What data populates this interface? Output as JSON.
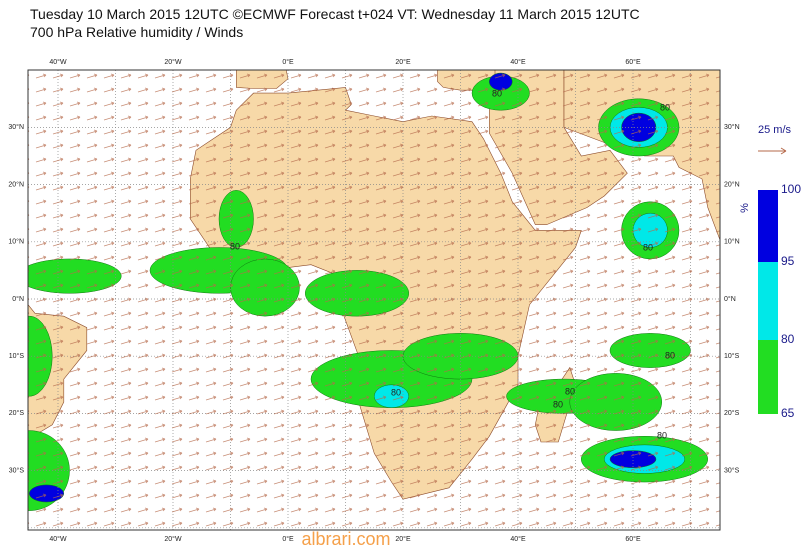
{
  "header": {
    "title": "Tuesday 10 March 2015 12UTC ©ECMWF Forecast t+024 VT: Wednesday 11 March 2015 12UTC",
    "subtitle": "700 hPa Relative humidity / Winds"
  },
  "map": {
    "longitude_labels": [
      "40°W",
      "20°W",
      "0°E",
      "20°E",
      "40°E",
      "60°E"
    ],
    "latitude_labels": [
      "30°N",
      "20°N",
      "10°N",
      "0°N",
      "10°S",
      "20°S",
      "30°S"
    ],
    "contour_labels": [
      "80",
      "80",
      "80",
      "80",
      "80",
      "80",
      "80",
      "80",
      "80"
    ]
  },
  "legend": {
    "wind_scale": "25 m/s",
    "unit": "%",
    "levels": [
      "100",
      "95",
      "80",
      "65"
    ]
  },
  "watermark": "albrari.com"
}
